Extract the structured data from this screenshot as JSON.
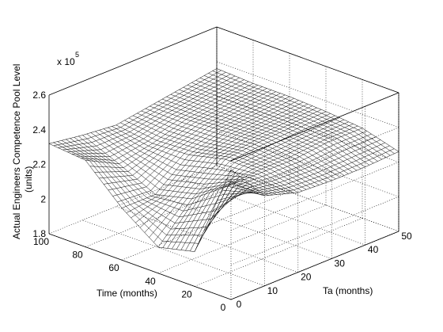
{
  "chart_data": {
    "type": "surface",
    "title": "",
    "xlabel": "Time (months)",
    "ylabel": "Ta (months)",
    "zlabel_line1": "Actual Engineers Competence Pool Level",
    "zlabel_line2": "(units)",
    "z_scale_label": "x 10",
    "z_scale_exponent": "5",
    "x_range": [
      0,
      100
    ],
    "y_range": [
      0,
      50
    ],
    "z_range": [
      1.8,
      2.6
    ],
    "x_ticks": [
      "0",
      "20",
      "40",
      "60",
      "80",
      "100"
    ],
    "y_ticks": [
      "0",
      "10",
      "20",
      "30",
      "40",
      "50"
    ],
    "z_ticks": [
      "1.8",
      "2",
      "2.2",
      "2.4",
      "2.6"
    ],
    "grid": true,
    "surface": {
      "description_of_shape": "mesh surface over Time x Ta",
      "x_samples": [
        0,
        20,
        40,
        60,
        80,
        100
      ],
      "y_samples": [
        0,
        10,
        20,
        30,
        40,
        50
      ],
      "z_values_e5": [
        [
          2.55,
          2.32,
          2.26,
          2.25,
          2.25,
          2.26
        ],
        [
          2.0,
          2.3,
          2.3,
          2.3,
          2.32,
          2.32
        ],
        [
          1.95,
          2.15,
          2.3,
          2.32,
          2.33,
          2.34
        ],
        [
          2.1,
          2.1,
          2.25,
          2.31,
          2.33,
          2.35
        ],
        [
          2.3,
          2.2,
          2.24,
          2.3,
          2.33,
          2.35
        ],
        [
          2.32,
          2.29,
          2.27,
          2.3,
          2.33,
          2.36
        ]
      ]
    }
  }
}
